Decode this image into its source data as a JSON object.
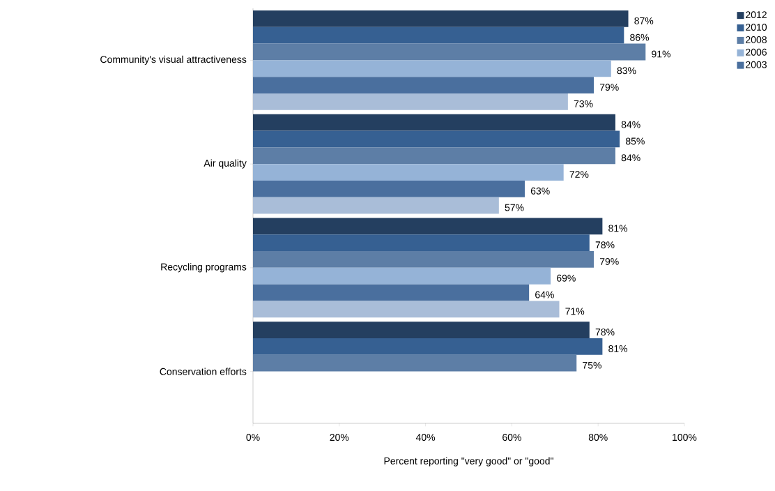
{
  "chart_data": {
    "type": "bar",
    "orientation": "horizontal",
    "xlabel": "Percent reporting \"very good\" or \"good\"",
    "categories": [
      "Community's visual attractiveness",
      "Air quality",
      "Recycling programs",
      "Conservation efforts"
    ],
    "series": [
      {
        "name": "2012",
        "color": "#243f60",
        "values": [
          87,
          84,
          81,
          78
        ],
        "value_labels": [
          "87%",
          "84%",
          "81%",
          "78%"
        ]
      },
      {
        "name": "2010",
        "color": "#366092",
        "values": [
          86,
          85,
          78,
          81
        ],
        "value_labels": [
          "86%",
          "85%",
          "78%",
          "81%"
        ]
      },
      {
        "name": "2008",
        "color": "#5d7ea6",
        "values": [
          91,
          84,
          79,
          75
        ],
        "value_labels": [
          "91%",
          "84%",
          "79%",
          "75%"
        ]
      },
      {
        "name": "2006",
        "color": "#95b3d7",
        "values": [
          83,
          72,
          69,
          null
        ],
        "value_labels": [
          "83%",
          "72%",
          "69%",
          null
        ]
      },
      {
        "name": "2003",
        "color": "#4a6f9e",
        "values": [
          79,
          63,
          64,
          null
        ],
        "value_labels": [
          "79%",
          "63%",
          "64%",
          null
        ]
      },
      {
        "color": "#a9bdd8",
        "values": [
          73,
          57,
          71,
          null
        ],
        "value_labels": [
          "73%",
          "57%",
          "71%",
          null
        ]
      }
    ],
    "xlim": [
      0,
      100
    ],
    "xticks": [
      {
        "value": 0,
        "label": "0%"
      },
      {
        "value": 20,
        "label": "20%"
      },
      {
        "value": 40,
        "label": "40%"
      },
      {
        "value": 60,
        "label": "60%"
      },
      {
        "value": 80,
        "label": "80%"
      },
      {
        "value": 100,
        "label": "100%"
      }
    ],
    "legend": "top right"
  }
}
